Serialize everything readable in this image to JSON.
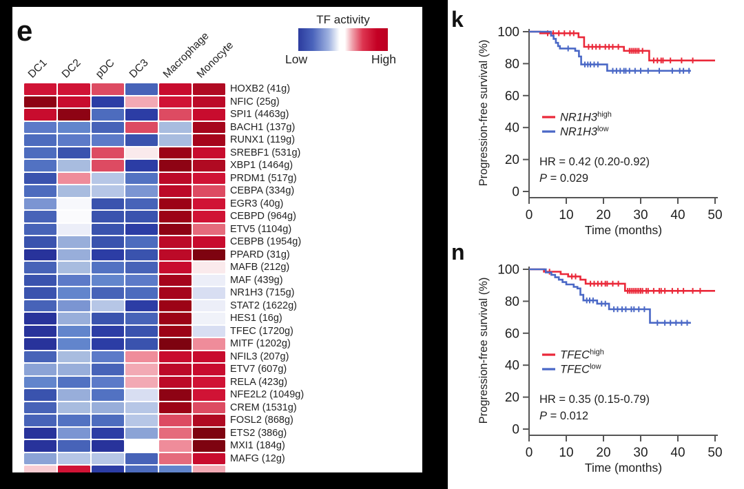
{
  "panels": {
    "e": {
      "label": "e"
    },
    "k": {
      "label": "k"
    },
    "n": {
      "label": "n"
    }
  },
  "chart_data": [
    {
      "id": "e",
      "type": "heatmap",
      "legend": {
        "title": "TF activity",
        "low": "Low",
        "high": "High",
        "gradient": [
          "#2c3c9e",
          "#ffffff",
          "#bc0022"
        ]
      },
      "columns": [
        "DC1",
        "DC2",
        "pDC",
        "DC3",
        "Macrophage",
        "Monocyte"
      ],
      "value_encoding": "cell colors encode TF activity from Low (blue) to High (red)",
      "rows": [
        {
          "gene": "HOXB2 (41g)",
          "colors": [
            "#d01335",
            "#d01335",
            "#dd4b62",
            "#4763b8",
            "#c80c2e",
            "#b00a22"
          ]
        },
        {
          "gene": "NFIC (25g)",
          "colors": [
            "#8e0314",
            "#c80c2e",
            "#2c3da5",
            "#f2a9b4",
            "#d01335",
            "#bc0a28"
          ]
        },
        {
          "gene": "SPI1 (4463g)",
          "colors": [
            "#c80c2e",
            "#8e0314",
            "#4d6cbe",
            "#2c3da5",
            "#dd4b62",
            "#c80c2e"
          ]
        },
        {
          "gene": "BACH1 (137g)",
          "colors": [
            "#5c7ac8",
            "#6285cc",
            "#4763b8",
            "#dd4b62",
            "#a8bcdf",
            "#a6051c"
          ]
        },
        {
          "gene": "RUNX1 (119g)",
          "colors": [
            "#4d6cbe",
            "#5c7ac8",
            "#5c7ac8",
            "#3a53ae",
            "#a8bcdf",
            "#a6051c"
          ]
        },
        {
          "gene": "SREBF1 (531g)",
          "colors": [
            "#4d6cbe",
            "#3a53ae",
            "#dd4b62",
            "#faeaec",
            "#9c0316",
            "#c80c2e"
          ]
        },
        {
          "gene": "XBP1 (1464g)",
          "colors": [
            "#5272c2",
            "#a8bcdf",
            "#dd4b62",
            "#2c3da5",
            "#8e0314",
            "#b00a22"
          ]
        },
        {
          "gene": "PRDM1 (517g)",
          "colors": [
            "#3a53ae",
            "#ef8c9a",
            "#b6c6e6",
            "#5272c2",
            "#bc0a28",
            "#d01335"
          ]
        },
        {
          "gene": "CEBPA (334g)",
          "colors": [
            "#4d6cbe",
            "#a8bcdf",
            "#b6c6e6",
            "#7b95d2",
            "#bc0a28",
            "#dd4b62"
          ]
        },
        {
          "gene": "EGR3 (40g)",
          "colors": [
            "#7b95d2",
            "#f7f8fc",
            "#3a53ae",
            "#4763b8",
            "#9c0316",
            "#d01335"
          ]
        },
        {
          "gene": "CEBPD (964g)",
          "colors": [
            "#4763b8",
            "#fbfbfd",
            "#3a53ae",
            "#3a53ae",
            "#9c0316",
            "#d01335"
          ]
        },
        {
          "gene": "ETV5 (1104g)",
          "colors": [
            "#4763b8",
            "#eceef8",
            "#3a53ae",
            "#2c3da5",
            "#8e0314",
            "#e56b7c"
          ]
        },
        {
          "gene": "CEBPB (1954g)",
          "colors": [
            "#3a53ae",
            "#98aeda",
            "#3a53ae",
            "#4d6cbe",
            "#bc0a28",
            "#c80c2e"
          ]
        },
        {
          "gene": "PPARD (31g)",
          "colors": [
            "#28339b",
            "#98aeda",
            "#2c3da5",
            "#3a53ae",
            "#bc0a28",
            "#7e0310"
          ]
        },
        {
          "gene": "MAFB (212g)",
          "colors": [
            "#4763b8",
            "#a8bcdf",
            "#5272c2",
            "#4763b8",
            "#c80c2e",
            "#faeaec"
          ]
        },
        {
          "gene": "MAF (439g)",
          "colors": [
            "#3a53ae",
            "#5c7ac8",
            "#6285cc",
            "#5c7ac8",
            "#a6051c",
            "#eceef8"
          ]
        },
        {
          "gene": "NR1H3 (715g)",
          "colors": [
            "#3a53ae",
            "#6285cc",
            "#4763b8",
            "#4d6cbe",
            "#a6051c",
            "#d8def2"
          ]
        },
        {
          "gene": "STAT2 (1622g)",
          "colors": [
            "#4763b8",
            "#7b95d2",
            "#b6c6e6",
            "#2c3da5",
            "#9c0316",
            "#eceef8"
          ]
        },
        {
          "gene": "HES1 (16g)",
          "colors": [
            "#28339b",
            "#98aeda",
            "#3a53ae",
            "#4763b8",
            "#9c0316",
            "#f0f2f9"
          ]
        },
        {
          "gene": "TFEC (1720g)",
          "colors": [
            "#28339b",
            "#6285cc",
            "#2c3da5",
            "#3a53ae",
            "#9c0316",
            "#d8def2"
          ]
        },
        {
          "gene": "MITF (1202g)",
          "colors": [
            "#28339b",
            "#6285cc",
            "#2c3da5",
            "#3a53ae",
            "#7e0310",
            "#ef8c9a"
          ]
        },
        {
          "gene": "NFIL3 (207g)",
          "colors": [
            "#4763b8",
            "#a8bcdf",
            "#5c7ac8",
            "#ef8c9a",
            "#c80c2e",
            "#c80c2e"
          ]
        },
        {
          "gene": "ETV7 (607g)",
          "colors": [
            "#8ba3d6",
            "#98aeda",
            "#4763b8",
            "#f2a9b4",
            "#bc0a28",
            "#c80c2e"
          ]
        },
        {
          "gene": "RELA (423g)",
          "colors": [
            "#6285cc",
            "#5272c2",
            "#5c7ac8",
            "#f2a9b4",
            "#bc0a28",
            "#d01335"
          ]
        },
        {
          "gene": "NFE2L2 (1049g)",
          "colors": [
            "#3a53ae",
            "#98aeda",
            "#5272c2",
            "#d8def2",
            "#8e0314",
            "#d01335"
          ]
        },
        {
          "gene": "CREM (1531g)",
          "colors": [
            "#4763b8",
            "#a8bcdf",
            "#98aeda",
            "#b6c6e6",
            "#9c0316",
            "#dd4b62"
          ]
        },
        {
          "gene": "FOSL2 (868g)",
          "colors": [
            "#4763b8",
            "#5272c2",
            "#4d6cbe",
            "#b6c6e6",
            "#dd4b62",
            "#b00a22"
          ]
        },
        {
          "gene": "ETS2 (386g)",
          "colors": [
            "#28339b",
            "#7b95d2",
            "#2c3da5",
            "#8ba3d6",
            "#e56b7c",
            "#7e0310"
          ]
        },
        {
          "gene": "MXI1 (184g)",
          "colors": [
            "#28339b",
            "#4763b8",
            "#28339b",
            "#ffffff",
            "#ef8c9a",
            "#7e0310"
          ]
        },
        {
          "gene": "MAFG (12g)",
          "colors": [
            "#8ba3d6",
            "#b6c6e6",
            "#b6c6e6",
            "#4763b8",
            "#e56b7c",
            "#c80c2e"
          ]
        },
        {
          "gene": "",
          "colors": [
            "#f8ccd2",
            "#d01335",
            "#2c3da5",
            "#4d6cbe",
            "#6285cc",
            "#f2a9b4"
          ]
        }
      ]
    },
    {
      "id": "k",
      "type": "line",
      "subtype": "kaplan-meier",
      "ylabel": "Progression-free survival (%)",
      "xlabel": "Time (months)",
      "xlim": [
        0,
        50
      ],
      "ylim": [
        0,
        100
      ],
      "x_ticks": [
        0,
        10,
        20,
        30,
        40,
        50
      ],
      "y_ticks": [
        0,
        20,
        40,
        60,
        80,
        100
      ],
      "legend_position": "inside-left",
      "series": [
        {
          "name": "NR1H3",
          "sup": "high",
          "color": "#ea2839",
          "steps": [
            [
              0,
              100
            ],
            [
              3,
              100
            ],
            [
              3,
              99
            ],
            [
              13.3,
              99
            ],
            [
              13.3,
              96.5
            ],
            [
              14.8,
              96.5
            ],
            [
              14.8,
              90.5
            ],
            [
              25.5,
              90.5
            ],
            [
              25.5,
              88
            ],
            [
              32.3,
              88
            ],
            [
              32.3,
              82
            ],
            [
              50,
              82
            ]
          ],
          "censors": [
            5,
            6.5,
            8,
            9.5,
            11,
            12,
            16,
            17,
            18,
            19,
            20.5,
            21.5,
            22.5,
            24,
            27,
            27.5,
            28,
            28.5,
            29,
            29.5,
            30.5,
            33.5,
            34.5,
            35.5,
            36,
            38,
            41,
            44
          ]
        },
        {
          "name": "NR1H3",
          "sup": "low",
          "color": "#4a68c6",
          "steps": [
            [
              0,
              100
            ],
            [
              5.9,
              100
            ],
            [
              5.9,
              97.5
            ],
            [
              6.6,
              97.5
            ],
            [
              6.6,
              95.5
            ],
            [
              7.2,
              95.5
            ],
            [
              7.2,
              93
            ],
            [
              7.8,
              93
            ],
            [
              7.8,
              91
            ],
            [
              8.3,
              91
            ],
            [
              8.3,
              89.5
            ],
            [
              12.4,
              89.5
            ],
            [
              12.4,
              88
            ],
            [
              13.4,
              88
            ],
            [
              13.4,
              84.5
            ],
            [
              14,
              84.5
            ],
            [
              14,
              79.5
            ],
            [
              21,
              79.5
            ],
            [
              21,
              75.5
            ],
            [
              43.5,
              75.5
            ]
          ],
          "censors": [
            10.5,
            15,
            15.8,
            16.5,
            17.5,
            18.5,
            22.5,
            23.5,
            24.5,
            25.5,
            26,
            27,
            28.5,
            30,
            32,
            35,
            38.5,
            40.5,
            41.5,
            43
          ]
        }
      ],
      "stats": {
        "hr": "HR = 0.42 (0.20-0.92)",
        "p_symbol": "P",
        "p_rest": " = 0.029"
      }
    },
    {
      "id": "n",
      "type": "line",
      "subtype": "kaplan-meier",
      "ylabel": "Progression-free survival (%)",
      "xlabel": "Time (months)",
      "xlim": [
        0,
        50
      ],
      "ylim": [
        0,
        100
      ],
      "x_ticks": [
        0,
        10,
        20,
        30,
        40,
        50
      ],
      "y_ticks": [
        0,
        20,
        40,
        60,
        80,
        100
      ],
      "legend_position": "inside-left",
      "series": [
        {
          "name": "TFEC",
          "sup": "high",
          "color": "#ea2839",
          "steps": [
            [
              0,
              100
            ],
            [
              4,
              100
            ],
            [
              4,
              98.5
            ],
            [
              8.5,
              98.5
            ],
            [
              8.5,
              97
            ],
            [
              10.5,
              97
            ],
            [
              10.5,
              95.5
            ],
            [
              13.8,
              95.5
            ],
            [
              13.8,
              93.5
            ],
            [
              15.2,
              93.5
            ],
            [
              15.2,
              91
            ],
            [
              25.8,
              91
            ],
            [
              25.8,
              86.5
            ],
            [
              50,
              86.5
            ]
          ],
          "censors": [
            5.5,
            11.5,
            12.5,
            16.5,
            17.5,
            18.5,
            19.5,
            20.5,
            21,
            22.5,
            24,
            26.5,
            27,
            27.5,
            28,
            28.5,
            29,
            29.5,
            30,
            30.5,
            31.5,
            32,
            33.5,
            35,
            35.5,
            36.5,
            38.5,
            40,
            41.5,
            44,
            46
          ]
        },
        {
          "name": "TFEC",
          "sup": "low",
          "color": "#4a68c6",
          "steps": [
            [
              0,
              100
            ],
            [
              4.5,
              100
            ],
            [
              4.5,
              98
            ],
            [
              6,
              98
            ],
            [
              6,
              96.5
            ],
            [
              7,
              96.5
            ],
            [
              7,
              95
            ],
            [
              8,
              95
            ],
            [
              8,
              93.5
            ],
            [
              9,
              93.5
            ],
            [
              9,
              92
            ],
            [
              10,
              92
            ],
            [
              10,
              90.5
            ],
            [
              12,
              90.5
            ],
            [
              12,
              89
            ],
            [
              13,
              89
            ],
            [
              13,
              88
            ],
            [
              13.8,
              88
            ],
            [
              13.8,
              84
            ],
            [
              14.6,
              84
            ],
            [
              14.6,
              80.5
            ],
            [
              18.3,
              80.5
            ],
            [
              18.3,
              78.5
            ],
            [
              21.5,
              78.5
            ],
            [
              21.5,
              75
            ],
            [
              32.5,
              75
            ],
            [
              32.5,
              66.5
            ],
            [
              43.5,
              66.5
            ]
          ],
          "censors": [
            15.5,
            16.3,
            17.2,
            19.5,
            20.5,
            22.8,
            23.8,
            25,
            26,
            27.5,
            28.2,
            29.5,
            31,
            34.5,
            36.5,
            38,
            39.5,
            41,
            42.5
          ]
        }
      ],
      "stats": {
        "hr": "HR = 0.35 (0.15-0.79)",
        "p_symbol": "P",
        "p_rest": " = 0.012"
      }
    }
  ]
}
